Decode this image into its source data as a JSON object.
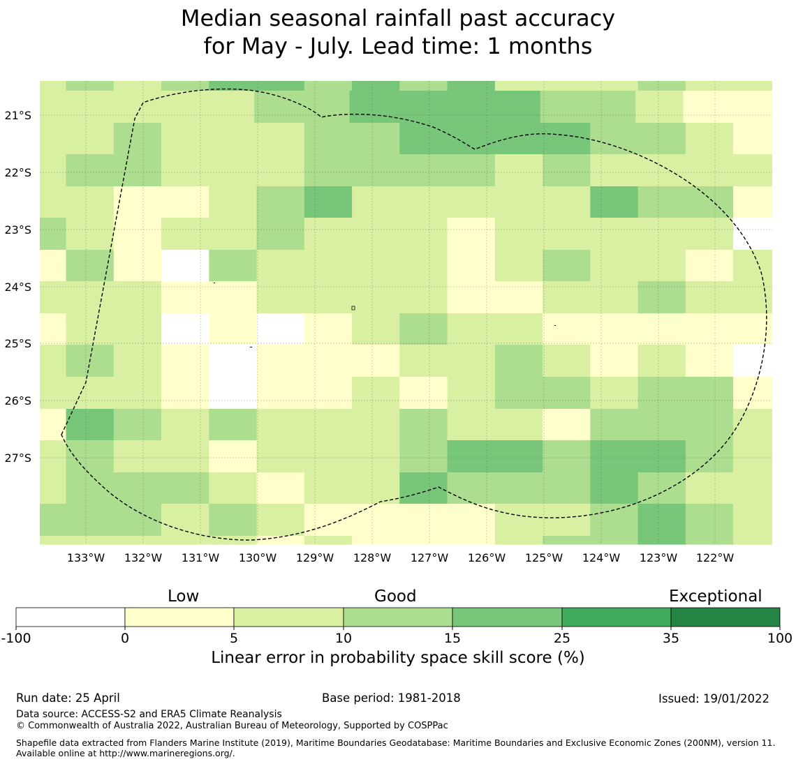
{
  "title": {
    "line1": "Median seasonal rainfall past accuracy",
    "line2": "for May - July. Lead time: 1 months"
  },
  "map": {
    "lat_labels": [
      "21°S",
      "22°S",
      "23°S",
      "24°S",
      "25°S",
      "26°S",
      "27°S"
    ],
    "lon_labels": [
      "133°W",
      "132°W",
      "131°W",
      "130°W",
      "129°W",
      "128°W",
      "127°W",
      "126°W",
      "125°W",
      "124°W",
      "123°W",
      "122°W"
    ],
    "grid_codes": [
      "23323333444444434322",
      "23332333444444444333",
      "2333233333444444333444433300",
      "2223222333433334433333322",
      "3333334334333323322222221",
      "2222222222222222111111111",
      "23323322222232222111111111",
      "3211110223322221133332222",
      "2333322233332222221122",
      "31111222223222222333223322",
      "231110223333111111111111"
    ],
    "colors": [
      "#ffffff",
      "#ffffcc",
      "#d9f0a3",
      "#addd8e",
      "#78c679",
      "#41ab5d",
      "#238443"
    ]
  },
  "colorbar": {
    "categories": [
      "Low",
      "Good",
      "Exceptional"
    ],
    "ticks": [
      "-100",
      "0",
      "5",
      "10",
      "15",
      "25",
      "35",
      "100"
    ],
    "label": "Linear error in probability space skill score (%)"
  },
  "footer": {
    "run_date": "Run date: 25 April",
    "base_period": "Base period: 1981-2018",
    "issued": "Issued: 19/01/2022",
    "data_source": "Data source: ACCESS-S2 and ERA5 Climate Reanalysis",
    "copyright": "© Commonwealth of Australia 2022, Australian Bureau of Meteorology, Supported by COSPPac",
    "shapefile": "Shapefile data extracted from Flanders Marine Institute (2019), Maritime Boundaries Geodatabase: Maritime Boundaries and Exclusive Economic Zones (200NM), version 11. Available online at http://www.marineregions.org/."
  }
}
